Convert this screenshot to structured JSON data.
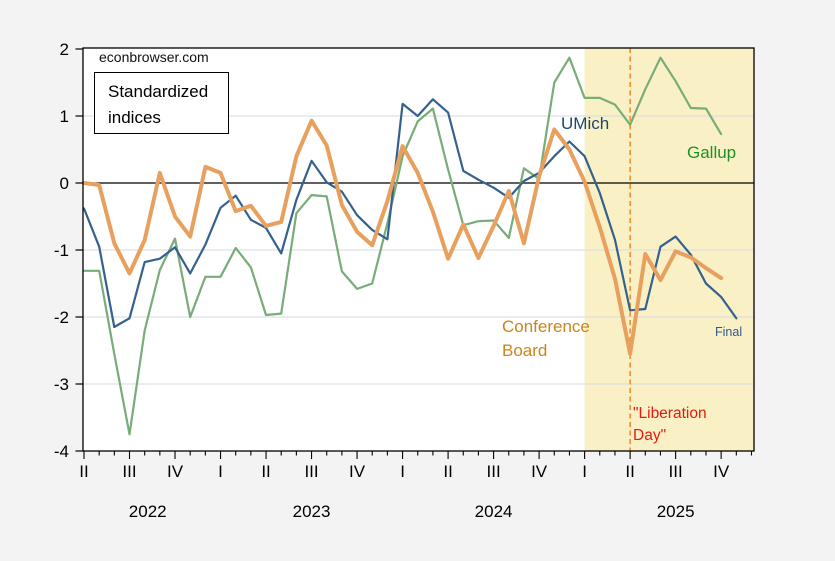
{
  "watermark": "econbrowser.com",
  "annotation_box": {
    "line1": "Standardized",
    "line2": "indices"
  },
  "series_labels": {
    "umich": "UMich",
    "gallup": "Gallup",
    "conference_board_line1": "Conference",
    "conference_board_line2": "Board",
    "final": "Final",
    "liberation_line1": "\"Liberation",
    "liberation_line2": "Day\""
  },
  "colors": {
    "umich_line": "#35618e",
    "umich_text": "#1a476f",
    "conference_board_line": "#e8a05f",
    "conference_board_text": "#c9861a",
    "gallup_line": "#78ac78",
    "gallup_text": "#1e9125",
    "liberation_text": "#e41b10",
    "vline": "#ef8318",
    "shading": "#faf0c5",
    "gridline": "#d5dbe0",
    "page_background": "#f2f3f2",
    "plot_background": "#ffffff"
  },
  "chart_data": {
    "type": "line",
    "title": "Standardized indices",
    "source_watermark": "econbrowser.com",
    "frequency": "monthly",
    "x_start": "2022-04",
    "ylim": [
      -4,
      2
    ],
    "yticks": [
      2,
      1,
      0,
      -1,
      -2,
      -3,
      -4
    ],
    "grid_y": [
      1,
      -1,
      -2,
      -3
    ],
    "zero_line": true,
    "legend_position": "inline-annotations",
    "quarter_labels": [
      "II",
      "III",
      "IV",
      "I",
      "II",
      "III",
      "IV",
      "I",
      "II",
      "III",
      "IV",
      "I",
      "II",
      "III",
      "IV"
    ],
    "year_labels": [
      {
        "label": "2022",
        "month_index": 4.2
      },
      {
        "label": "2023",
        "month_index": 15
      },
      {
        "label": "2024",
        "month_index": 27
      },
      {
        "label": "2025",
        "month_index": 39
      }
    ],
    "shaded_region": {
      "start_month_index": 33,
      "start_date": "2025-01",
      "color": "#faf0c5"
    },
    "vline": {
      "month_index": 36,
      "date": "2025-04",
      "label": "\"Liberation Day\"",
      "color": "#ef8318",
      "style": "dashed"
    },
    "series": [
      {
        "name": "Gallup",
        "color": "#78ac78",
        "line_width": 2.2,
        "values": [
          -1.31,
          -1.31,
          -2.55,
          -3.75,
          -2.2,
          -1.3,
          -0.83,
          -2.0,
          -1.4,
          -1.4,
          -0.97,
          -1.26,
          -1.97,
          -1.95,
          -0.45,
          -0.18,
          -0.2,
          -1.32,
          -1.58,
          -1.5,
          -0.6,
          0.4,
          0.92,
          1.11,
          0.2,
          -0.63,
          -0.57,
          -0.56,
          -0.82,
          0.22,
          0.06,
          1.5,
          1.87,
          1.27,
          1.27,
          1.17,
          0.87,
          1.4,
          1.87,
          1.52,
          1.12,
          1.11,
          0.73
        ]
      },
      {
        "name": "UMich",
        "color": "#35618e",
        "line_width": 2.2,
        "values": [
          -0.38,
          -0.95,
          -2.15,
          -2.02,
          -1.18,
          -1.13,
          -0.96,
          -1.35,
          -0.92,
          -0.37,
          -0.19,
          -0.55,
          -0.67,
          -1.05,
          -0.25,
          0.33,
          0.01,
          -0.13,
          -0.48,
          -0.7,
          -0.84,
          1.18,
          1.0,
          1.25,
          1.05,
          0.18,
          0.05,
          -0.07,
          -0.22,
          0.03,
          0.15,
          0.4,
          0.62,
          0.4,
          -0.15,
          -0.85,
          -1.9,
          -1.88,
          -0.95,
          -0.8,
          -1.07,
          -1.5,
          -1.7,
          -2.02
        ]
      },
      {
        "name": "Conference Board",
        "color": "#e8a05f",
        "line_width": 4,
        "values": [
          0.0,
          -0.03,
          -0.9,
          -1.35,
          -0.85,
          0.15,
          -0.5,
          -0.8,
          0.24,
          0.15,
          -0.42,
          -0.34,
          -0.64,
          -0.58,
          0.4,
          0.93,
          0.56,
          -0.33,
          -0.73,
          -0.93,
          -0.27,
          0.55,
          0.15,
          -0.43,
          -1.13,
          -0.62,
          -1.12,
          -0.64,
          -0.12,
          -0.9,
          0.1,
          0.8,
          0.5,
          0.02,
          -0.66,
          -1.43,
          -2.55,
          -1.06,
          -1.45,
          -1.02,
          -1.11,
          -1.27,
          -1.42
        ]
      }
    ]
  }
}
